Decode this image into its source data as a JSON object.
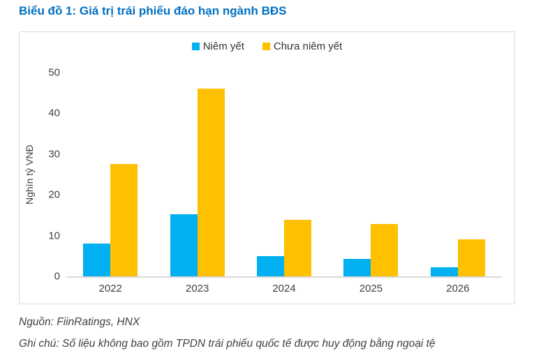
{
  "page": {
    "title": "Biểu đồ 1: Giá trị trái phiếu đáo hạn ngành BĐS"
  },
  "chart_data": {
    "type": "bar",
    "title": "Biểu đồ 1: Giá trị trái phiếu đáo hạn ngành BĐS",
    "categories": [
      "2022",
      "2023",
      "2024",
      "2025",
      "2026"
    ],
    "series": [
      {
        "name": "Niêm yết",
        "color": "#00B0F0",
        "values": [
          8.0,
          15.3,
          5.0,
          4.2,
          2.2
        ]
      },
      {
        "name": "Chưa niêm yết",
        "color": "#FFC000",
        "values": [
          27.5,
          46.0,
          13.8,
          12.8,
          9.1
        ]
      }
    ],
    "xlabel": "",
    "ylabel": "Nghìn tỷ VNĐ",
    "ylim": [
      0,
      50
    ],
    "yticks": [
      0,
      10,
      20,
      30,
      40,
      50
    ],
    "grid": false,
    "legend_position": "top"
  },
  "footer": {
    "source": "Nguồn: FiinRatings, HNX",
    "note": "Ghi chú: Số liệu không bao gồm TPDN trái phiếu quốc tế được huy động bằng ngoại tệ"
  },
  "colors": {
    "title_blue": "#0070C0",
    "axis_text": "#404040",
    "baseline": "#d9d9d9",
    "frame_border": "#dcdcdc"
  }
}
